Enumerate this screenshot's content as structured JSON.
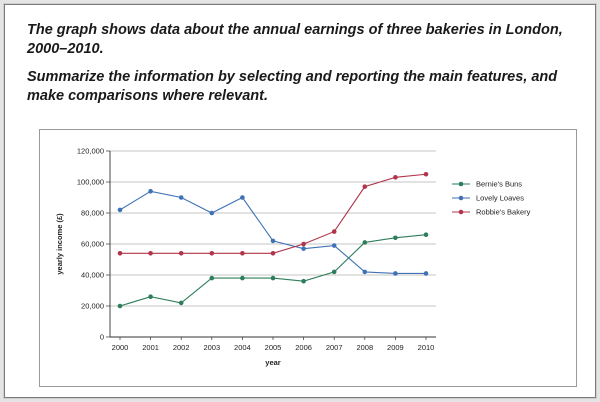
{
  "prompt": {
    "line1": "The graph shows data about the annual earnings of three bakeries in London, 2000–2010.",
    "line2": "Summarize the information by selecting and reporting the main features, and make comparisons where relevant."
  },
  "chart_data": {
    "type": "line",
    "x": [
      "2000",
      "2001",
      "2002",
      "2003",
      "2004",
      "2005",
      "2006",
      "2007",
      "2008",
      "2009",
      "2010"
    ],
    "xlabel": "year",
    "ylabel": "yearly income (£)",
    "ylim": [
      0,
      120000
    ],
    "yticks": [
      "0",
      "20,000",
      "40,000",
      "60,000",
      "80,000",
      "100,000",
      "120,000"
    ],
    "grid": "horizontal",
    "legend_position": "right",
    "series": [
      {
        "name": "Bernie's Buns",
        "color": "#2e7d5b",
        "values": [
          20000,
          26000,
          22000,
          38000,
          38000,
          38000,
          36000,
          42000,
          61000,
          64000,
          66000
        ]
      },
      {
        "name": "Lovely Loaves",
        "color": "#3f72b5",
        "values": [
          82000,
          94000,
          90000,
          80000,
          90000,
          62000,
          57000,
          59000,
          42000,
          41000,
          41000
        ]
      },
      {
        "name": "Robbie's Bakery",
        "color": "#b0344a",
        "values": [
          54000,
          54000,
          54000,
          54000,
          54000,
          54000,
          60000,
          68000,
          97000,
          103000,
          105000
        ]
      }
    ]
  }
}
